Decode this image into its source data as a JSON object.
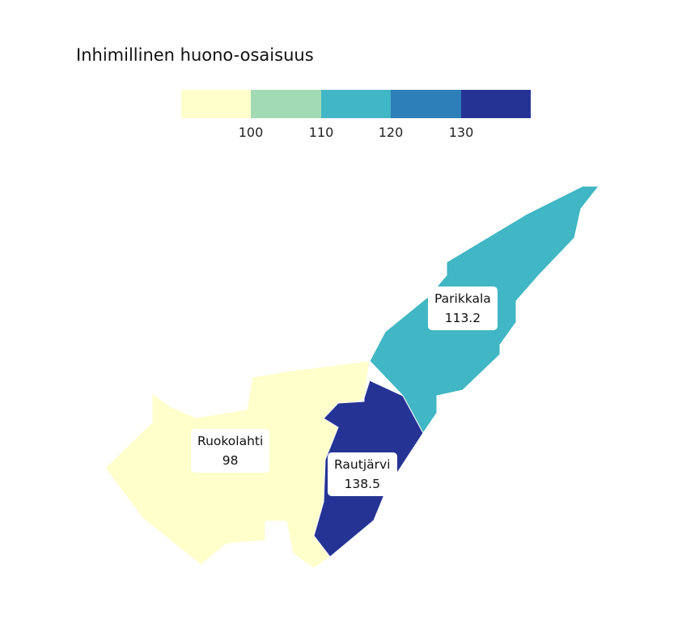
{
  "title": "Inhimillinen huono-osaisuus",
  "legend": {
    "colors": [
      "#ffffcc",
      "#a1dab4",
      "#41b6c4",
      "#2c7fb8",
      "#253494"
    ],
    "ticks": [
      "100",
      "110",
      "120",
      "130"
    ]
  },
  "regions": [
    {
      "name": "Ruokolahti",
      "value": "98",
      "color": "#ffffcc"
    },
    {
      "name": "Parikkala",
      "value": "113.2",
      "color": "#41b6c4"
    },
    {
      "name": "Rautjärvi",
      "value": "138.5",
      "color": "#253494"
    }
  ]
}
